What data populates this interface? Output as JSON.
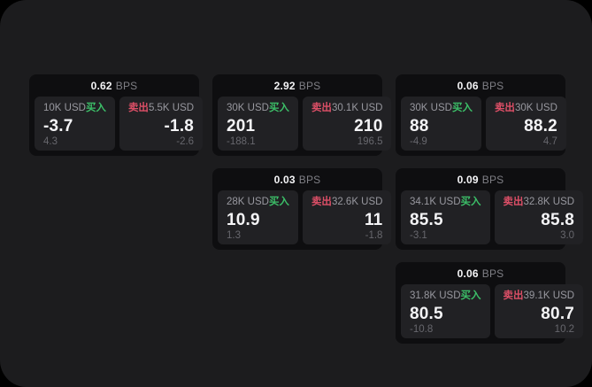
{
  "page": {
    "outer_bg": "#000000",
    "panel_bg": "#1c1c1e",
    "card_bg": "#0e0e10",
    "tile_bg": "#212124",
    "buy_color": "#3cbf68",
    "sell_color": "#dd4f67"
  },
  "labels": {
    "bps": "BPS",
    "buy": "买入",
    "sell": "卖出"
  },
  "cards": [
    {
      "col": 1,
      "row": 1,
      "bps": "0.62",
      "buy": {
        "amount": "10K USD",
        "price": "-3.7",
        "delta": "4.3"
      },
      "sell": {
        "amount": "5.5K USD",
        "price": "-1.8",
        "delta": "-2.6"
      }
    },
    {
      "col": 2,
      "row": 1,
      "bps": "2.92",
      "buy": {
        "amount": "30K USD",
        "price": "201",
        "delta": "-188.1"
      },
      "sell": {
        "amount": "30.1K USD",
        "price": "210",
        "delta": "196.5"
      }
    },
    {
      "col": 3,
      "row": 1,
      "bps": "0.06",
      "buy": {
        "amount": "30K USD",
        "price": "88",
        "delta": "-4.9"
      },
      "sell": {
        "amount": "30K USD",
        "price": "88.2",
        "delta": "4.7"
      }
    },
    {
      "col": 2,
      "row": 2,
      "bps": "0.03",
      "buy": {
        "amount": "28K USD",
        "price": "10.9",
        "delta": "1.3"
      },
      "sell": {
        "amount": "32.6K USD",
        "price": "11",
        "delta": "-1.8"
      }
    },
    {
      "col": 3,
      "row": 2,
      "bps": "0.09",
      "buy": {
        "amount": "34.1K USD",
        "price": "85.5",
        "delta": "-3.1"
      },
      "sell": {
        "amount": "32.8K USD",
        "price": "85.8",
        "delta": "3.0"
      }
    },
    {
      "col": 3,
      "row": 3,
      "bps": "0.06",
      "buy": {
        "amount": "31.8K USD",
        "price": "80.5",
        "delta": "-10.8"
      },
      "sell": {
        "amount": "39.1K USD",
        "price": "80.7",
        "delta": "10.2"
      }
    }
  ]
}
